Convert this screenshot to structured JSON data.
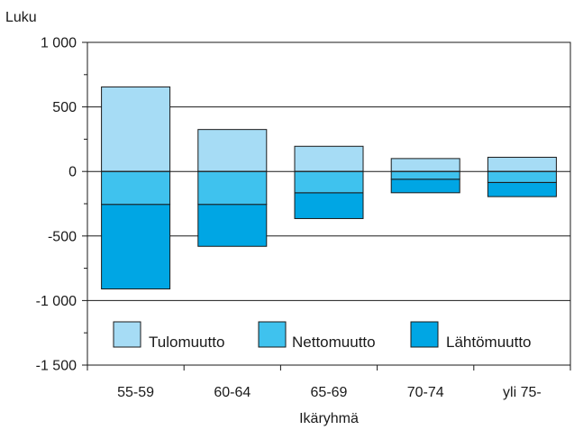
{
  "chart_data": {
    "type": "bar",
    "stacking": "diverging",
    "ylabel": "Luku",
    "xlabel": "Ikäryhmä",
    "ylim": [
      -1500,
      1000
    ],
    "yticks": [
      1000,
      500,
      0,
      -500,
      -1000,
      -1500
    ],
    "ytick_labels": [
      "1 000",
      "500",
      "0",
      "-500",
      "-1 000",
      "-1 500"
    ],
    "grid": "horizontal",
    "legend_position": "bottom-inside",
    "categories": [
      "55-59",
      "60-64",
      "65-69",
      "70-74",
      "yli 75-"
    ],
    "series": [
      {
        "name": "Tulomuutto",
        "values": [
          655,
          325,
          195,
          100,
          110
        ],
        "color": "#a6dcf5"
      },
      {
        "name": "Nettomuutto",
        "values": [
          -255,
          -255,
          -165,
          -60,
          -85
        ],
        "color": "#3fc2ee"
      },
      {
        "name": "Lähtömuutto",
        "values": [
          -910,
          -580,
          -365,
          -165,
          -195
        ],
        "color": "#00a6e4"
      }
    ]
  }
}
